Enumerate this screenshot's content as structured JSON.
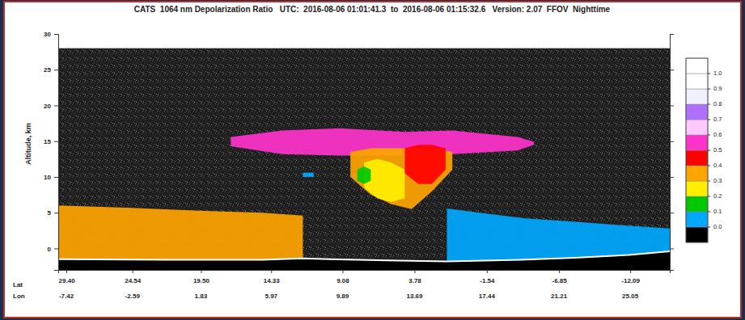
{
  "chart_data": {
    "type": "heatmap",
    "title": "CATS  1064 nm Depolarization Ratio   UTC:  2016-08-06 01:01:41.3  to  2016-08-06 01:15:32.6   Version: 2.07  FFOV  Nighttime",
    "ylabel": "Altitude, km",
    "xlim": [
      30,
      -15
    ],
    "xticks": [
      {
        "value": 29.4,
        "label": "29.40"
      },
      24.54,
      {
        "value": 19.5,
        "label": "19.50"
      },
      14.33,
      9.08,
      3.78,
      -1.54,
      -6.85,
      -12.09
    ],
    "xtick_row_labels": [
      "Lat",
      "Lon"
    ],
    "lon_labels": [
      -7.42,
      -2.59,
      1.83,
      5.97,
      9.89,
      13.69,
      17.44,
      21.21,
      25.05
    ],
    "ylim": [
      -3,
      30
    ],
    "yticks": [
      0,
      5,
      10,
      15,
      20,
      25,
      30
    ],
    "profile_top": 28,
    "surface": {
      "x": [
        30,
        22,
        15,
        12,
        10,
        5,
        1.4,
        -4,
        -8,
        -12,
        -15
      ],
      "altitude": [
        -1.5,
        -1.6,
        -1.6,
        -1.4,
        -1.5,
        -1.7,
        -1.8,
        -1.6,
        -1.3,
        -0.9,
        -0.4
      ]
    },
    "layers": [
      {
        "value": 0.32,
        "x": [
          30,
          25,
          20,
          15,
          12
        ],
        "top": [
          6.0,
          5.7,
          5.3,
          5.0,
          4.6
        ],
        "base": [
          -2,
          -2,
          -2,
          -2,
          -2
        ]
      },
      {
        "value": 0.04,
        "x": [
          1.4,
          -1,
          -4.4,
          -7.5,
          -10.3,
          -15
        ],
        "top": [
          5.6,
          5.0,
          4.2,
          3.8,
          3.4,
          2.8
        ],
        "base": [
          -2,
          -2,
          -2,
          -2,
          -2,
          -2
        ]
      },
      {
        "value": 0.55,
        "x": [
          17.3,
          13.5,
          9.3,
          4.5,
          1.0,
          -3.8,
          -5.0
        ],
        "top": [
          15.6,
          16.5,
          16.8,
          16.3,
          16.5,
          15.6,
          14.9
        ],
        "base": [
          14.3,
          13.2,
          13.0,
          13.0,
          13.2,
          13.7,
          14.5
        ]
      },
      {
        "value": 0.35,
        "x": [
          8.5,
          7.0,
          5.5,
          4.0,
          2.5,
          1.0
        ],
        "top": [
          13.5,
          14,
          14,
          14,
          14,
          13.5
        ],
        "base": [
          10.0,
          7.5,
          6.2,
          5.5,
          8.0,
          11.0
        ]
      },
      {
        "value": 0.25,
        "x": [
          7.5,
          6.5,
          5.5,
          4.5
        ],
        "top": [
          12.0,
          12.5,
          12.0,
          11.0
        ],
        "base": [
          8.5,
          7.0,
          6.5,
          7.0
        ]
      },
      {
        "value": 0.45,
        "x": [
          4.5,
          3.5,
          2.5,
          1.5
        ],
        "top": [
          14.0,
          14.5,
          14.5,
          14.0
        ],
        "base": [
          10.5,
          9.0,
          9.0,
          11.0
        ]
      },
      {
        "value": 0.15,
        "x": [
          8.0,
          7.5,
          7.0
        ],
        "top": [
          11,
          11.5,
          11
        ],
        "base": [
          9.5,
          9,
          9.5
        ]
      },
      {
        "value": 0.05,
        "x": [
          12.0,
          11.2
        ],
        "top": [
          10.6,
          10.6
        ],
        "base": [
          10.0,
          10.0
        ]
      }
    ],
    "colorbar": {
      "bounds": [
        -0.1,
        0,
        0.1,
        0.2,
        0.3,
        0.4,
        0.5,
        0.6,
        0.7,
        0.8,
        0.9,
        1.0,
        1.1
      ],
      "colors": [
        "#000000",
        "#00a8ff",
        "#00c800",
        "#ffee00",
        "#ffa500",
        "#ff0000",
        "#ff33cc",
        "#ffc8ff",
        "#b070ff",
        "#f0f0ff",
        "#ffffff",
        "#ffffff"
      ],
      "ticks": [
        {
          "value": 0,
          "label": "0.0"
        },
        0.1,
        0.2,
        0.3,
        0.4,
        0.5,
        0.6,
        0.7,
        0.8,
        0.9,
        {
          "value": 1,
          "label": "1.0"
        }
      ]
    }
  }
}
